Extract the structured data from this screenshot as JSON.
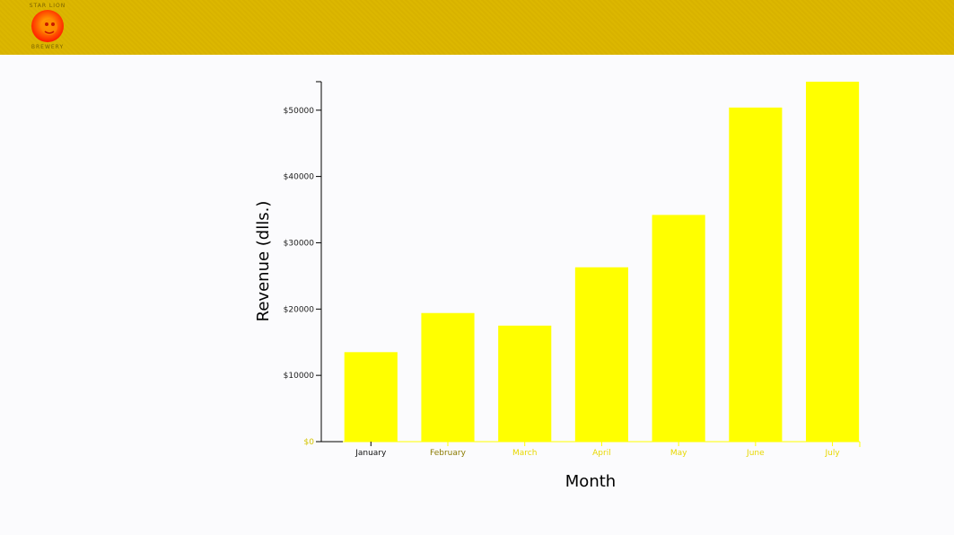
{
  "header": {
    "logo_top_text": "STAR LION",
    "logo_bottom_text": "BREWERY",
    "background_color": "#dcb700"
  },
  "chart_data": {
    "type": "bar",
    "categories": [
      "January",
      "February",
      "March",
      "April",
      "May",
      "June",
      "July"
    ],
    "values": [
      13500,
      19400,
      17500,
      26300,
      34200,
      50400,
      54300
    ],
    "xlabel": "Month",
    "ylabel": "Revenue (dlls.)",
    "ylim": [
      0,
      54300
    ],
    "yticks": [
      0,
      10000,
      20000,
      30000,
      40000,
      50000
    ],
    "ytick_labels": [
      "$0",
      "$10000",
      "$20000",
      "$30000",
      "$40000",
      "$50000"
    ],
    "bar_color": "#ffff00",
    "grid": false
  }
}
